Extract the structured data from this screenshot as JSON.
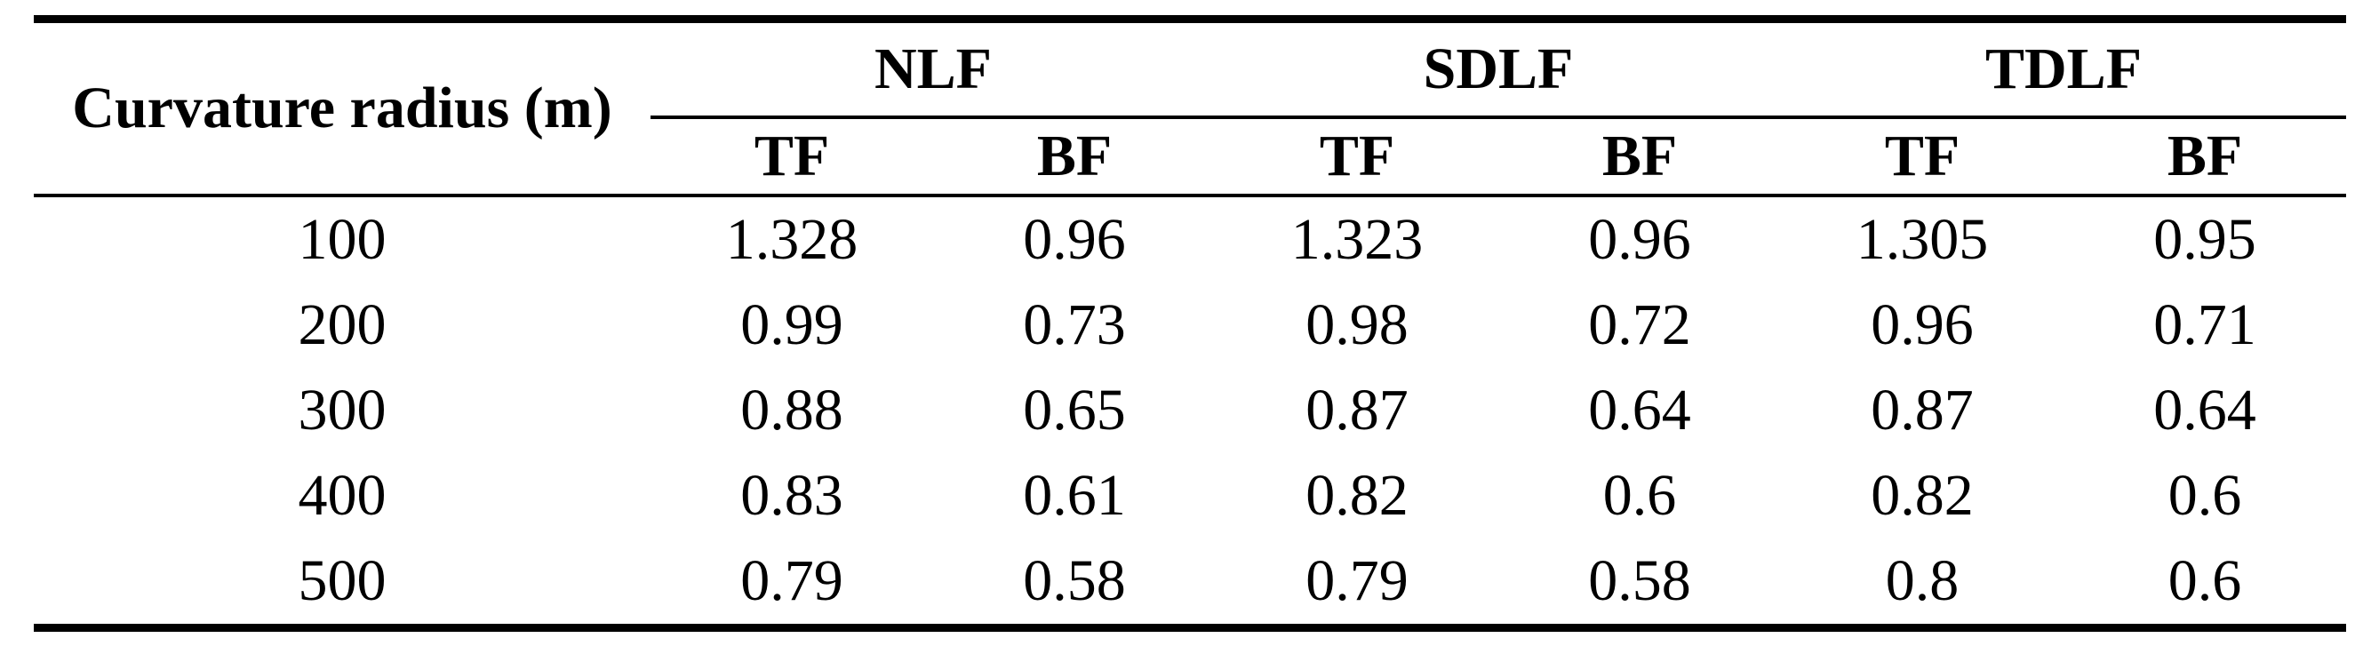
{
  "page": {
    "background": "#ffffff"
  },
  "colors": {
    "text": "#000000",
    "rule": "#000000",
    "background": "#ffffff"
  },
  "table": {
    "row_header": {
      "label": "Curvature radius (m)"
    },
    "column_groups": [
      {
        "label": "NLF",
        "subcolumns": [
          "TF",
          "BF"
        ]
      },
      {
        "label": "SDLF",
        "subcolumns": [
          "TF",
          "BF"
        ]
      },
      {
        "label": "TDLF",
        "subcolumns": [
          "TF",
          "BF"
        ]
      }
    ],
    "subheaders": [
      "TF",
      "BF",
      "TF",
      "BF",
      "TF",
      "BF"
    ],
    "rows": [
      {
        "radius": "100",
        "values": [
          "1.328",
          "0.96",
          "1.323",
          "0.96",
          "1.305",
          "0.95"
        ]
      },
      {
        "radius": "200",
        "values": [
          "0.99",
          "0.73",
          "0.98",
          "0.72",
          "0.96",
          "0.71"
        ]
      },
      {
        "radius": "300",
        "values": [
          "0.88",
          "0.65",
          "0.87",
          "0.64",
          "0.87",
          "0.64"
        ]
      },
      {
        "radius": "400",
        "values": [
          "0.83",
          "0.61",
          "0.82",
          "0.6",
          "0.82",
          "0.6"
        ]
      },
      {
        "radius": "500",
        "values": [
          "0.79",
          "0.58",
          "0.79",
          "0.58",
          "0.8",
          "0.6"
        ]
      }
    ]
  },
  "chart_data": {
    "type": "table",
    "columns": [
      "Curvature radius (m)",
      "NLF TF",
      "NLF BF",
      "SDLF TF",
      "SDLF BF",
      "TDLF TF",
      "TDLF BF"
    ],
    "rows": [
      [
        100,
        1.328,
        0.96,
        1.323,
        0.96,
        1.305,
        0.95
      ],
      [
        200,
        0.99,
        0.73,
        0.98,
        0.72,
        0.96,
        0.71
      ],
      [
        300,
        0.88,
        0.65,
        0.87,
        0.64,
        0.87,
        0.64
      ],
      [
        400,
        0.83,
        0.61,
        0.82,
        0.6,
        0.82,
        0.6
      ],
      [
        500,
        0.79,
        0.58,
        0.79,
        0.58,
        0.8,
        0.6
      ]
    ]
  }
}
